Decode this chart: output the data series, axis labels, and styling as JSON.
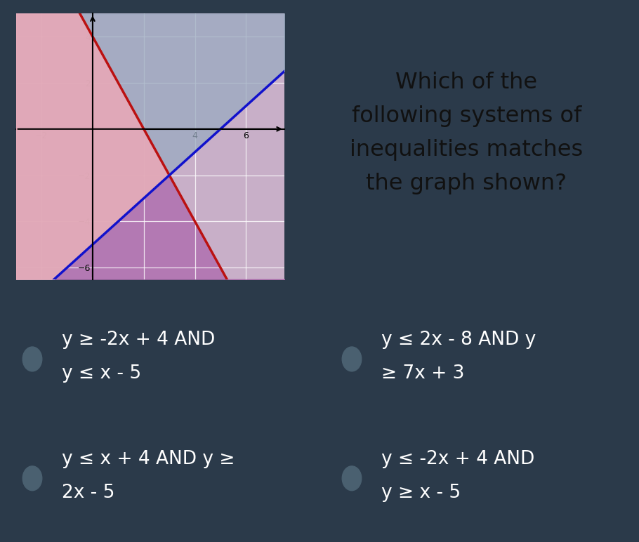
{
  "bg_outer": "#2b3a4a",
  "bg_top_panel": "#bcc8d4",
  "bg_option": "#364d60",
  "graph_bg": "#c8afc8",
  "graph_xlim": [
    -3,
    7.5
  ],
  "graph_ylim": [
    -6.5,
    5.0
  ],
  "graph_xticks": [
    -2,
    2,
    4,
    6
  ],
  "graph_yticks": [
    -6,
    -4,
    -2,
    2,
    4
  ],
  "line1_color": "#bb1111",
  "line2_color": "#1111cc",
  "shade_purple_color": "#b070b0",
  "shade_blue_color": "#9aaac0",
  "shade_pink_color": "#e8aab8",
  "question_text": "Which of the\nfollowing systems of\ninequalities matches\nthe graph shown?",
  "question_color": "#111111",
  "question_fontsize": 23,
  "options": [
    {
      "line1": "y ≥ -2x + 4 AND",
      "line2": "y ≤ x - 5"
    },
    {
      "line1": "y ≤ 2x - 8 AND y",
      "line2": "≥ 7x + 3"
    },
    {
      "line1": "y ≤ x + 4 AND y ≥",
      "line2": "2x - 5"
    },
    {
      "line1": "y ≤ -2x + 4 AND",
      "line2": "y ≥ x - 5"
    }
  ],
  "option_text_color": "#ffffff",
  "option_fontsize": 19,
  "radio_color": "#4a6070"
}
